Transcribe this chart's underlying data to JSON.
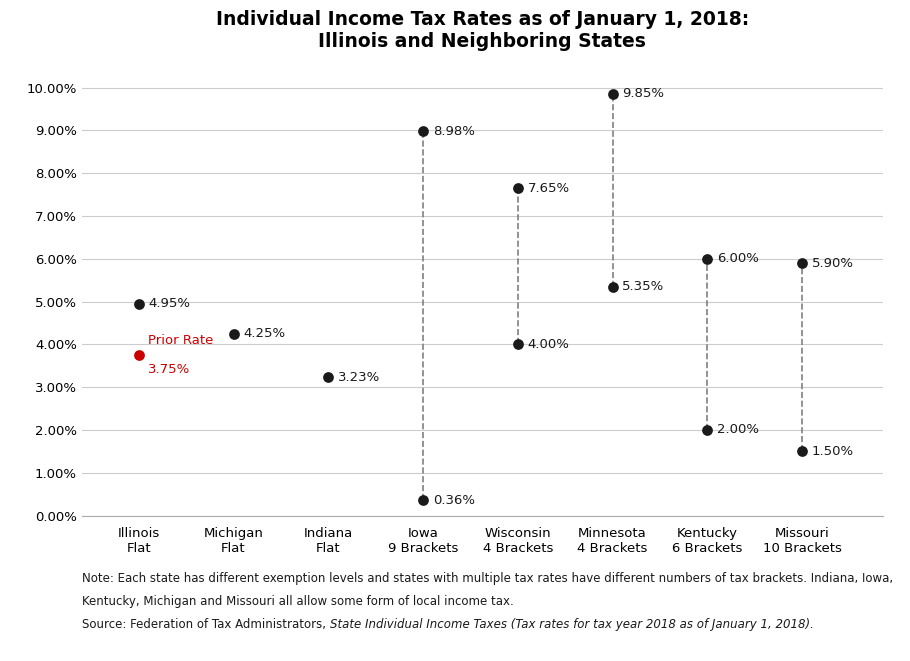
{
  "title": "Individual Income Tax Rates as of January 1, 2018:\nIllinois and Neighboring States",
  "states": [
    {
      "label": "Illinois\nFlat",
      "x": 0,
      "points": [
        4.95
      ],
      "flat": true
    },
    {
      "label": "Michigan\nFlat",
      "x": 1,
      "points": [
        4.25
      ],
      "flat": true
    },
    {
      "label": "Indiana\nFlat",
      "x": 2,
      "points": [
        3.23
      ],
      "flat": true
    },
    {
      "label": "Iowa\n9 Brackets",
      "x": 3,
      "points": [
        0.36,
        8.98
      ],
      "flat": false
    },
    {
      "label": "Wisconsin\n4 Brackets",
      "x": 4,
      "points": [
        4.0,
        7.65
      ],
      "flat": false
    },
    {
      "label": "Minnesota\n4 Brackets",
      "x": 5,
      "points": [
        5.35,
        9.85
      ],
      "flat": false
    },
    {
      "label": "Kentucky\n6 Brackets",
      "x": 6,
      "points": [
        2.0,
        6.0
      ],
      "flat": false
    },
    {
      "label": "Missouri\n10 Brackets",
      "x": 7,
      "points": [
        1.5,
        5.9
      ],
      "flat": false
    }
  ],
  "illinois_prior_rate": 3.75,
  "point_color": "#1a1a1a",
  "prior_rate_color": "#cc0000",
  "dashed_line_color": "#808080",
  "ylim": [
    0.0,
    10.5
  ],
  "yticks": [
    0.0,
    1.0,
    2.0,
    3.0,
    4.0,
    5.0,
    6.0,
    7.0,
    8.0,
    9.0,
    10.0
  ],
  "ytick_labels": [
    "0.00%",
    "1.00%",
    "2.00%",
    "3.00%",
    "4.00%",
    "5.00%",
    "6.00%",
    "7.00%",
    "8.00%",
    "9.00%",
    "10.00%"
  ],
  "note_line1": "Note: Each state has different exemption levels and states with multiple tax rates have different numbers of tax brackets. Indiana, Iowa,",
  "note_line2": "Kentucky, Michigan and Missouri all allow some form of local income tax.",
  "source_normal": "Source: Federation of Tax Administrators, ",
  "source_italic": "State Individual Income Taxes (Tax rates for tax year 2018 as of January 1, 2018).",
  "dot_size": 60,
  "label_fontsize": 9.5,
  "title_fontsize": 13.5,
  "tick_fontsize": 9.5,
  "note_fontsize": 8.5
}
